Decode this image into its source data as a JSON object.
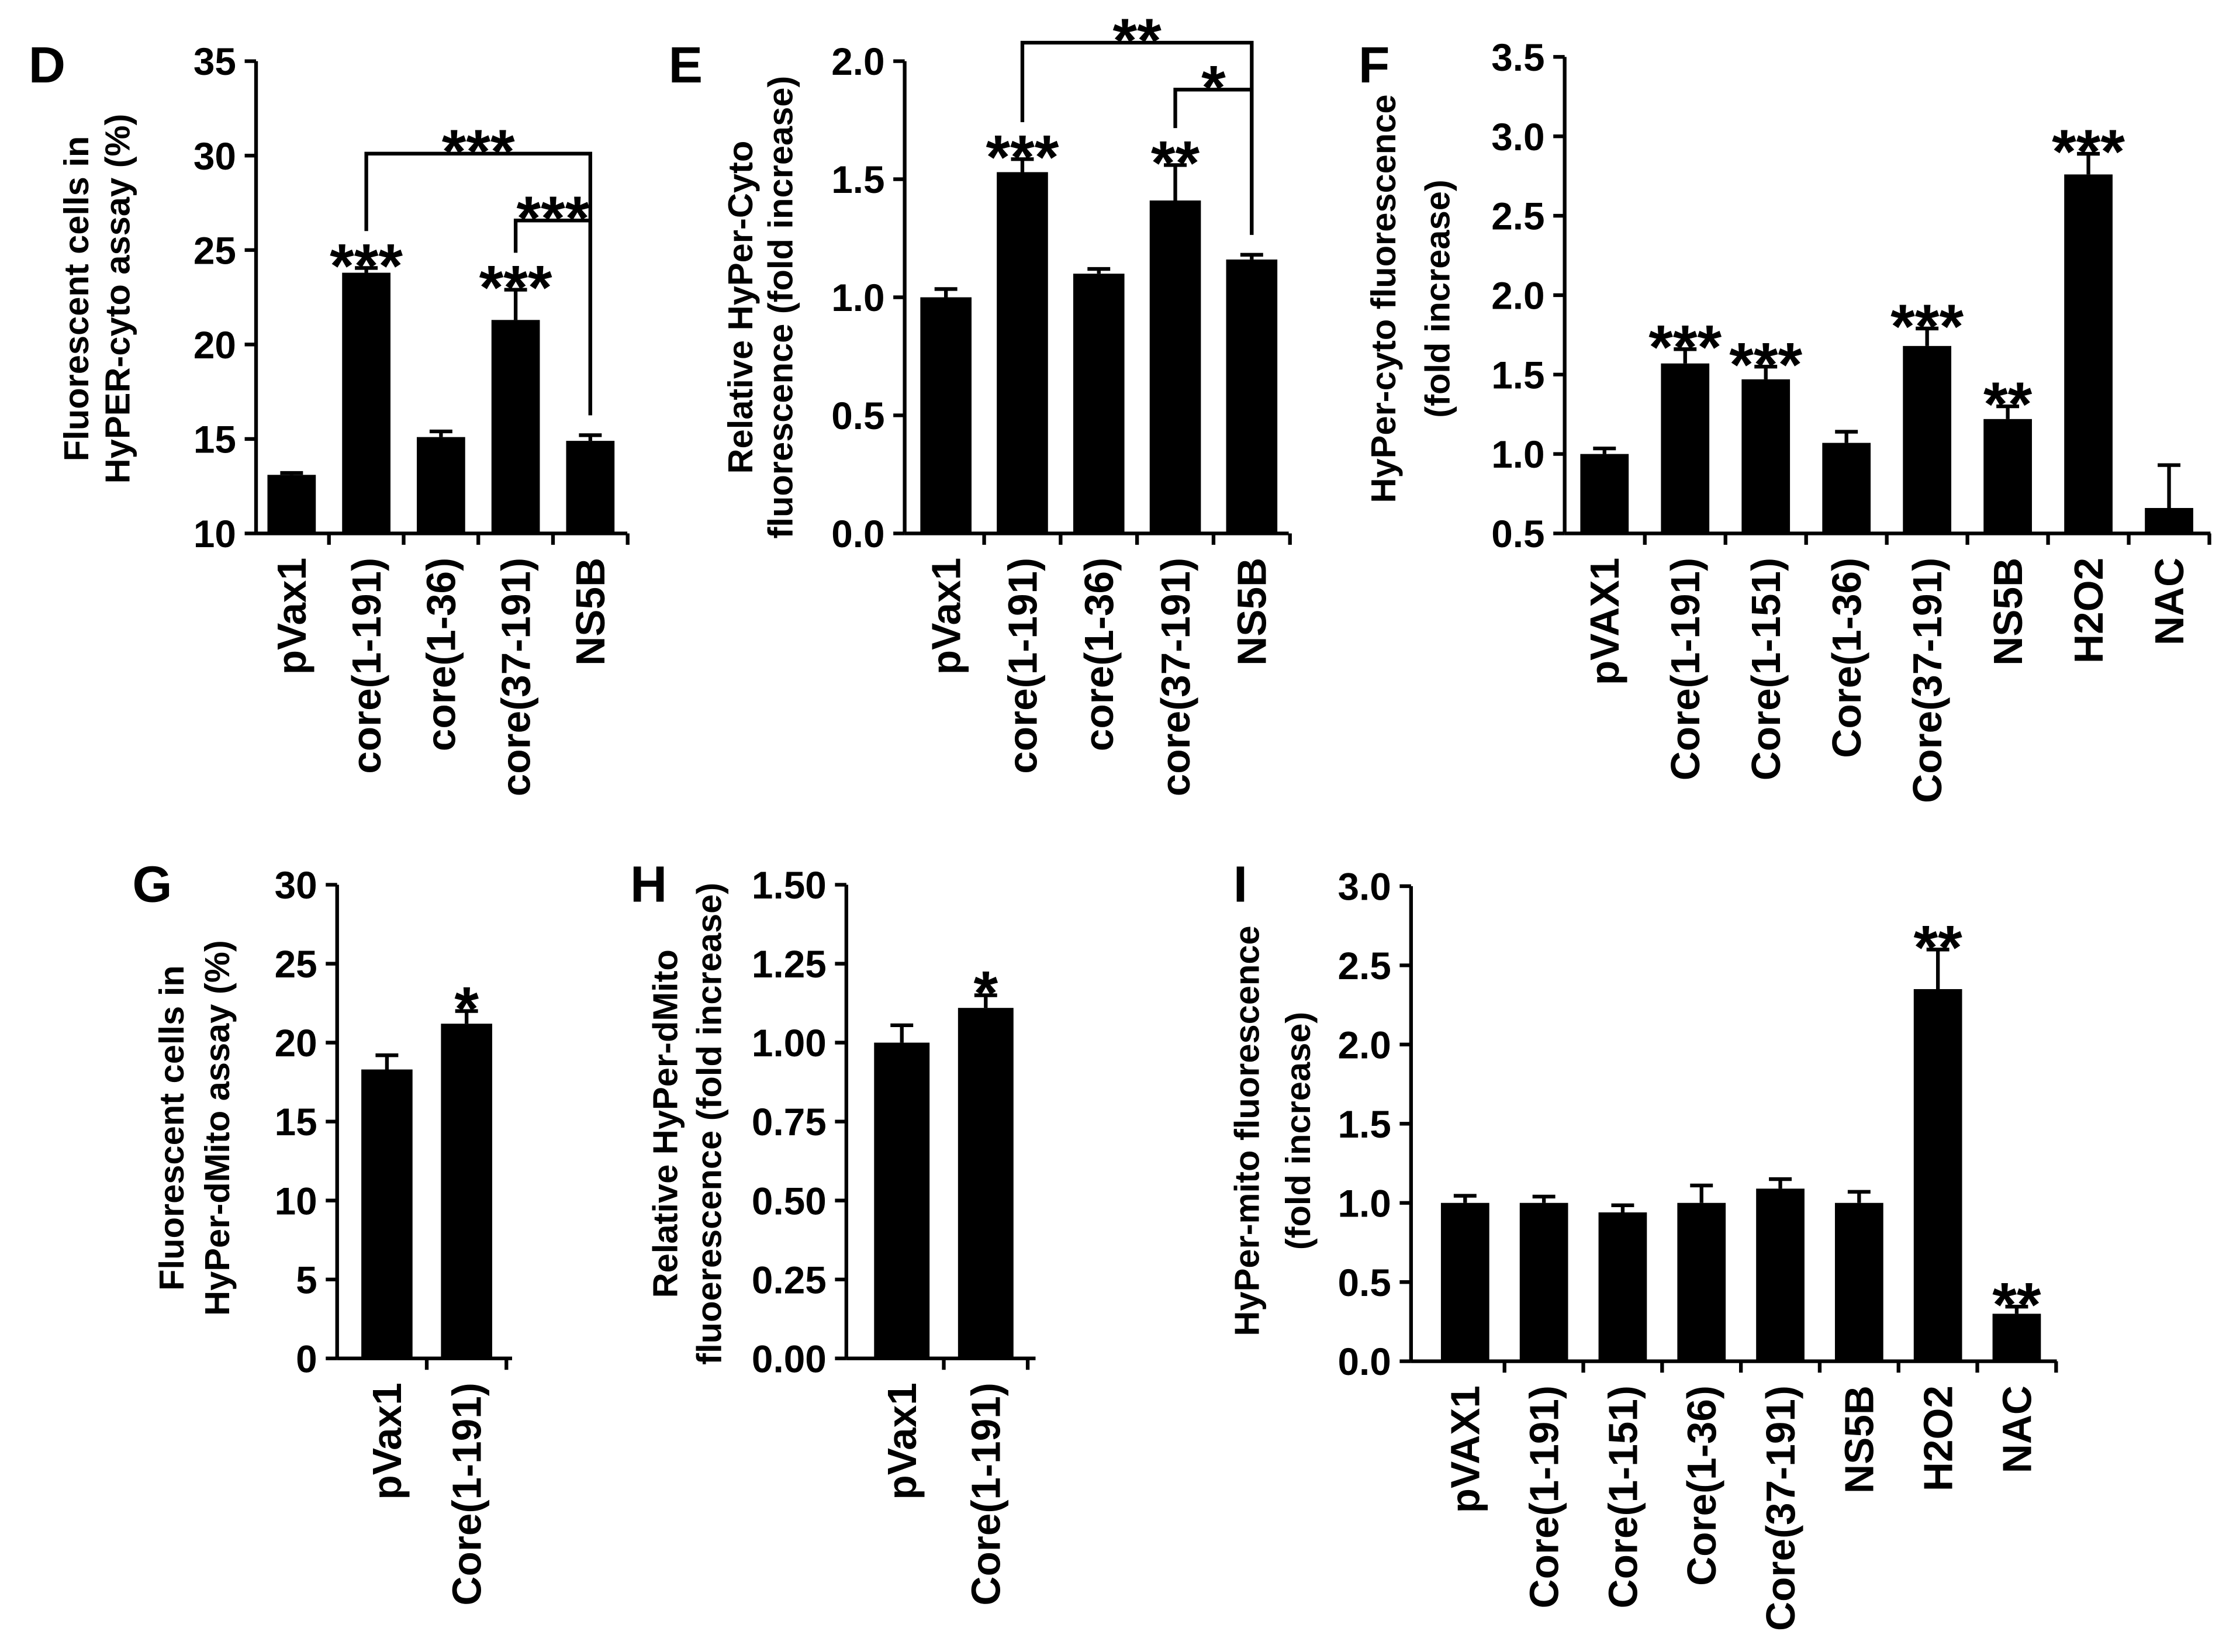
{
  "chart_data": [
    {
      "panel": "D",
      "type": "bar",
      "categories": [
        "pVax1",
        "core(1-191)",
        "core(1-36)",
        "core(37-191)",
        "NS5B"
      ],
      "values": [
        13.1,
        23.8,
        15.1,
        21.3,
        14.9
      ],
      "errors": [
        0.1,
        0.25,
        0.3,
        1.6,
        0.3
      ],
      "significance": [
        null,
        "***",
        null,
        "***",
        null
      ],
      "brackets": [
        {
          "from": 1,
          "to": 4,
          "label": "***"
        },
        {
          "from": 3,
          "to": 4,
          "label": "***"
        }
      ],
      "ylabel": [
        "Fluorescent cells in",
        "HyPER-cyto assay (%)"
      ],
      "ylim": [
        10,
        35
      ],
      "yticks": [
        "10",
        "15",
        "20",
        "25",
        "30",
        "35"
      ]
    },
    {
      "panel": "E",
      "type": "bar",
      "categories": [
        "pVax1",
        "core(1-191)",
        "core(1-36)",
        "core(37-191)",
        "NS5B"
      ],
      "values": [
        1.0,
        1.53,
        1.1,
        1.41,
        1.16
      ],
      "errors": [
        0.035,
        0.055,
        0.02,
        0.15,
        0.02
      ],
      "significance": [
        null,
        "***",
        null,
        "**",
        null
      ],
      "brackets": [
        {
          "from": 1,
          "to": 4,
          "label": "**"
        },
        {
          "from": 3,
          "to": 4,
          "label": "*"
        }
      ],
      "ylabel": [
        "Relative HyPer-Cyto",
        "fluorescence (fold increase)"
      ],
      "ylim": [
        0,
        2.0
      ],
      "yticks": [
        "0.0",
        "0.5",
        "1.0",
        "1.5",
        "2.0"
      ]
    },
    {
      "panel": "F",
      "type": "bar",
      "categories": [
        "pVAX1",
        "Core(1-191)",
        "Core(1-151)",
        "Core(1-36)",
        "Core(37-191)",
        "NS5B",
        "H2O2",
        "NAC"
      ],
      "values": [
        1.0,
        1.57,
        1.47,
        1.07,
        1.68,
        1.22,
        2.76,
        0.66
      ],
      "errors": [
        0.035,
        0.09,
        0.08,
        0.07,
        0.11,
        0.08,
        0.13,
        0.27
      ],
      "significance": [
        null,
        "***",
        "***",
        null,
        "***",
        "**",
        "***",
        null
      ],
      "brackets": [],
      "ylabel": [
        "HyPer-cyto fluorescence",
        "(fold increase)"
      ],
      "ylim": [
        0.5,
        3.5
      ],
      "yticks": [
        "0.5",
        "1.0",
        "1.5",
        "2.0",
        "2.5",
        "3.0",
        "3.5"
      ]
    },
    {
      "panel": "G",
      "type": "bar",
      "categories": [
        "pVax1",
        "Core(1-191)"
      ],
      "values": [
        18.3,
        21.2
      ],
      "errors": [
        0.9,
        0.8
      ],
      "significance": [
        null,
        "*"
      ],
      "brackets": [],
      "ylabel": [
        "Fluorescent cells in",
        "HyPer-dMito assay (%)"
      ],
      "ylim": [
        0,
        30
      ],
      "yticks": [
        "0",
        "5",
        "10",
        "15",
        "20",
        "25",
        "30"
      ]
    },
    {
      "panel": "H",
      "type": "bar",
      "categories": [
        "pVax1",
        "Core(1-191)"
      ],
      "values": [
        1.0,
        1.11
      ],
      "errors": [
        0.055,
        0.04
      ],
      "significance": [
        null,
        "*"
      ],
      "brackets": [],
      "ylabel": [
        "Relative HyPer-dMito",
        "fluoerescence (fold increase)"
      ],
      "ylim": [
        0,
        1.5
      ],
      "yticks": [
        "0.00",
        "0.25",
        "0.50",
        "0.75",
        "1.00",
        "1.25",
        "1.50"
      ]
    },
    {
      "panel": "I",
      "type": "bar",
      "categories": [
        "pVAX1",
        "Core(1-191)",
        "Core(1-151)",
        "Core(1-36)",
        "Core(37-191)",
        "NS5B",
        "H2O2",
        "NAC"
      ],
      "values": [
        1.0,
        1.0,
        0.94,
        1.0,
        1.09,
        1.0,
        2.35,
        0.3
      ],
      "errors": [
        0.045,
        0.04,
        0.045,
        0.11,
        0.06,
        0.07,
        0.25,
        0.045
      ],
      "significance": [
        null,
        null,
        null,
        null,
        null,
        null,
        "**",
        "**"
      ],
      "brackets": [],
      "ylabel": [
        "HyPer-mito fluorescence",
        "(fold increase)"
      ],
      "ylim": [
        0,
        3.0
      ],
      "yticks": [
        "0.0",
        "0.5",
        "1.0",
        "1.5",
        "2.0",
        "2.5",
        "3.0"
      ]
    }
  ]
}
